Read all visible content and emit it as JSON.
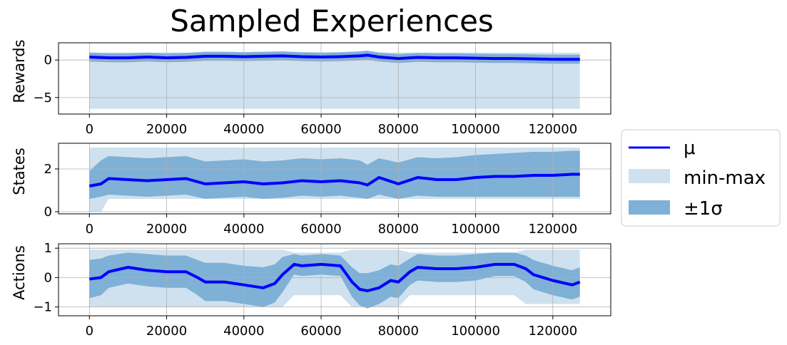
{
  "title": "Sampled Experiences",
  "legend": {
    "items": [
      {
        "label": "μ",
        "kind": "line",
        "color": "#0000ff"
      },
      {
        "label": "min-max",
        "kind": "band",
        "color": "#cfe1ee"
      },
      {
        "label": "±1σ",
        "kind": "band",
        "color": "#7fb0d6"
      }
    ],
    "placement": "right"
  },
  "chart_data": [
    {
      "type": "line",
      "ylabel": "Rewards",
      "xlim": [
        -8000,
        135000
      ],
      "ylim": [
        -7.2,
        2.3
      ],
      "xticks": [
        0,
        20000,
        40000,
        60000,
        80000,
        100000,
        120000
      ],
      "yticks": [
        0,
        -5
      ],
      "grid": true,
      "x": [
        0,
        5000,
        10000,
        15000,
        20000,
        25000,
        30000,
        35000,
        40000,
        45000,
        50000,
        55000,
        60000,
        65000,
        70000,
        72000,
        75000,
        80000,
        85000,
        90000,
        95000,
        100000,
        105000,
        110000,
        115000,
        120000,
        125000,
        127000
      ],
      "series": [
        {
          "role": "mean",
          "values": [
            0.4,
            0.3,
            0.3,
            0.4,
            0.3,
            0.35,
            0.5,
            0.5,
            0.45,
            0.5,
            0.55,
            0.45,
            0.4,
            0.45,
            0.55,
            0.65,
            0.4,
            0.2,
            0.35,
            0.3,
            0.3,
            0.25,
            0.2,
            0.2,
            0.15,
            0.1,
            0.1,
            0.1
          ]
        },
        {
          "role": "min",
          "values": [
            -6.5,
            -6.5,
            -6.5,
            -6.5,
            -6.5,
            -6.5,
            -6.5,
            -6.5,
            -6.5,
            -6.5,
            -6.5,
            -6.5,
            -6.5,
            -6.5,
            -6.5,
            -6.5,
            -6.5,
            -6.5,
            -6.5,
            -6.5,
            -6.5,
            -6.5,
            -6.5,
            -6.5,
            -6.5,
            -6.5,
            -6.5,
            -6.5
          ]
        },
        {
          "role": "max",
          "values": [
            1.0,
            1.0,
            1.0,
            1.0,
            1.0,
            1.0,
            1.0,
            1.0,
            1.0,
            1.0,
            1.0,
            1.0,
            1.0,
            1.0,
            1.0,
            1.0,
            1.0,
            1.0,
            1.0,
            1.0,
            1.0,
            1.0,
            1.0,
            1.0,
            1.0,
            1.0,
            1.0,
            1.0
          ]
        },
        {
          "role": "std_low",
          "values": [
            -0.2,
            -0.3,
            -0.3,
            -0.2,
            -0.3,
            -0.25,
            -0.1,
            -0.1,
            -0.15,
            -0.1,
            -0.05,
            -0.15,
            -0.2,
            -0.15,
            -0.05,
            0.05,
            -0.2,
            -0.4,
            -0.25,
            -0.3,
            -0.3,
            -0.35,
            -0.4,
            -0.4,
            -0.45,
            -0.5,
            -0.5,
            -0.5
          ]
        },
        {
          "role": "std_high",
          "values": [
            1.0,
            0.9,
            0.9,
            1.0,
            0.9,
            0.95,
            1.1,
            1.1,
            1.05,
            1.1,
            1.15,
            1.05,
            1.0,
            1.05,
            1.15,
            1.25,
            1.0,
            0.8,
            0.95,
            0.9,
            0.9,
            0.85,
            0.8,
            0.8,
            0.75,
            0.7,
            0.7,
            0.7
          ]
        }
      ]
    },
    {
      "type": "line",
      "ylabel": "States",
      "xlim": [
        -8000,
        135000
      ],
      "ylim": [
        -0.1,
        3.2
      ],
      "xticks": [
        0,
        20000,
        40000,
        60000,
        80000,
        100000,
        120000
      ],
      "yticks": [
        0,
        2
      ],
      "grid": true,
      "x": [
        0,
        3000,
        5000,
        10000,
        15000,
        20000,
        25000,
        30000,
        35000,
        40000,
        45000,
        50000,
        55000,
        60000,
        65000,
        70000,
        72000,
        75000,
        80000,
        85000,
        90000,
        95000,
        100000,
        105000,
        110000,
        115000,
        120000,
        125000,
        127000
      ],
      "series": [
        {
          "role": "mean",
          "values": [
            1.2,
            1.3,
            1.55,
            1.5,
            1.45,
            1.5,
            1.55,
            1.3,
            1.35,
            1.4,
            1.3,
            1.35,
            1.45,
            1.4,
            1.45,
            1.35,
            1.25,
            1.6,
            1.3,
            1.6,
            1.5,
            1.5,
            1.6,
            1.65,
            1.65,
            1.7,
            1.7,
            1.75,
            1.75
          ]
        },
        {
          "role": "min",
          "values": [
            0.0,
            0.0,
            0.6,
            0.6,
            0.6,
            0.6,
            0.6,
            0.6,
            0.6,
            0.6,
            0.6,
            0.6,
            0.6,
            0.6,
            0.6,
            0.6,
            0.6,
            0.6,
            0.6,
            0.6,
            0.6,
            0.6,
            0.6,
            0.6,
            0.6,
            0.6,
            0.6,
            0.6,
            0.6
          ]
        },
        {
          "role": "max",
          "values": [
            3.0,
            3.0,
            3.0,
            3.0,
            3.0,
            3.0,
            3.0,
            3.0,
            3.0,
            3.0,
            3.0,
            3.0,
            3.0,
            3.0,
            3.0,
            3.0,
            3.0,
            3.0,
            3.0,
            3.0,
            3.0,
            3.0,
            3.0,
            3.0,
            3.0,
            3.0,
            3.0,
            3.0,
            3.0
          ]
        },
        {
          "role": "std_low",
          "values": [
            0.6,
            0.7,
            0.8,
            0.75,
            0.7,
            0.75,
            0.8,
            0.6,
            0.65,
            0.7,
            0.6,
            0.65,
            0.75,
            0.7,
            0.75,
            0.65,
            0.6,
            0.8,
            0.6,
            0.75,
            0.7,
            0.7,
            0.7,
            0.7,
            0.7,
            0.7,
            0.7,
            0.7,
            0.7
          ]
        },
        {
          "role": "std_high",
          "values": [
            1.9,
            2.4,
            2.6,
            2.55,
            2.5,
            2.55,
            2.6,
            2.35,
            2.4,
            2.45,
            2.35,
            2.4,
            2.5,
            2.45,
            2.5,
            2.4,
            2.2,
            2.5,
            2.3,
            2.55,
            2.5,
            2.55,
            2.65,
            2.7,
            2.75,
            2.8,
            2.8,
            2.85,
            2.85
          ]
        }
      ]
    },
    {
      "type": "line",
      "ylabel": "Actions",
      "xlim": [
        -8000,
        135000
      ],
      "ylim": [
        -1.3,
        1.15
      ],
      "xticks": [
        0,
        20000,
        40000,
        60000,
        80000,
        100000,
        120000
      ],
      "yticks": [
        1,
        0,
        -1
      ],
      "grid": true,
      "x": [
        0,
        3000,
        5000,
        10000,
        15000,
        20000,
        25000,
        28000,
        30000,
        35000,
        40000,
        45000,
        48000,
        50000,
        53000,
        55000,
        60000,
        65000,
        68000,
        70000,
        72000,
        75000,
        78000,
        80000,
        83000,
        85000,
        90000,
        95000,
        100000,
        105000,
        110000,
        113000,
        115000,
        120000,
        125000,
        127000
      ],
      "series": [
        {
          "role": "mean",
          "values": [
            -0.05,
            0.0,
            0.2,
            0.35,
            0.25,
            0.2,
            0.2,
            0.0,
            -0.15,
            -0.15,
            -0.25,
            -0.35,
            -0.2,
            0.1,
            0.45,
            0.4,
            0.45,
            0.4,
            -0.15,
            -0.4,
            -0.45,
            -0.35,
            -0.1,
            -0.15,
            0.2,
            0.35,
            0.3,
            0.3,
            0.35,
            0.45,
            0.45,
            0.3,
            0.1,
            -0.1,
            -0.25,
            -0.15
          ]
        },
        {
          "role": "min",
          "values": [
            -1.0,
            -1.0,
            -1.0,
            -1.0,
            -1.0,
            -1.0,
            -1.0,
            -1.0,
            -1.0,
            -1.0,
            -1.0,
            -1.0,
            -1.0,
            -1.0,
            -0.6,
            -0.6,
            -0.6,
            -0.6,
            -1.0,
            -1.0,
            -1.0,
            -1.0,
            -1.0,
            -1.0,
            -0.6,
            -0.6,
            -0.6,
            -0.6,
            -0.6,
            -0.6,
            -0.6,
            -0.9,
            -0.9,
            -0.9,
            -0.9,
            -0.9
          ]
        },
        {
          "role": "max",
          "values": [
            0.95,
            0.95,
            0.95,
            0.95,
            0.95,
            0.95,
            0.95,
            0.95,
            0.95,
            0.95,
            0.95,
            0.95,
            0.95,
            0.95,
            0.85,
            0.85,
            0.85,
            0.85,
            0.95,
            0.95,
            0.95,
            0.95,
            0.95,
            0.95,
            0.85,
            0.85,
            0.85,
            0.85,
            0.85,
            0.85,
            0.85,
            0.95,
            0.95,
            0.95,
            0.95,
            0.95
          ]
        },
        {
          "role": "std_low",
          "values": [
            -0.7,
            -0.6,
            -0.35,
            -0.2,
            -0.3,
            -0.35,
            -0.35,
            -0.6,
            -0.8,
            -0.8,
            -0.9,
            -1.0,
            -0.85,
            -0.5,
            0.1,
            0.05,
            0.1,
            0.05,
            -0.65,
            -0.95,
            -1.05,
            -0.9,
            -0.65,
            -0.7,
            -0.25,
            -0.1,
            -0.15,
            -0.15,
            -0.1,
            0.05,
            0.05,
            -0.15,
            -0.4,
            -0.6,
            -0.75,
            -0.65
          ]
        },
        {
          "role": "std_high",
          "values": [
            0.6,
            0.65,
            0.75,
            0.85,
            0.8,
            0.75,
            0.75,
            0.6,
            0.5,
            0.5,
            0.4,
            0.35,
            0.45,
            0.7,
            0.8,
            0.75,
            0.8,
            0.75,
            0.35,
            0.15,
            0.15,
            0.25,
            0.45,
            0.4,
            0.65,
            0.8,
            0.75,
            0.75,
            0.8,
            0.85,
            0.85,
            0.75,
            0.6,
            0.4,
            0.25,
            0.35
          ]
        }
      ]
    }
  ]
}
